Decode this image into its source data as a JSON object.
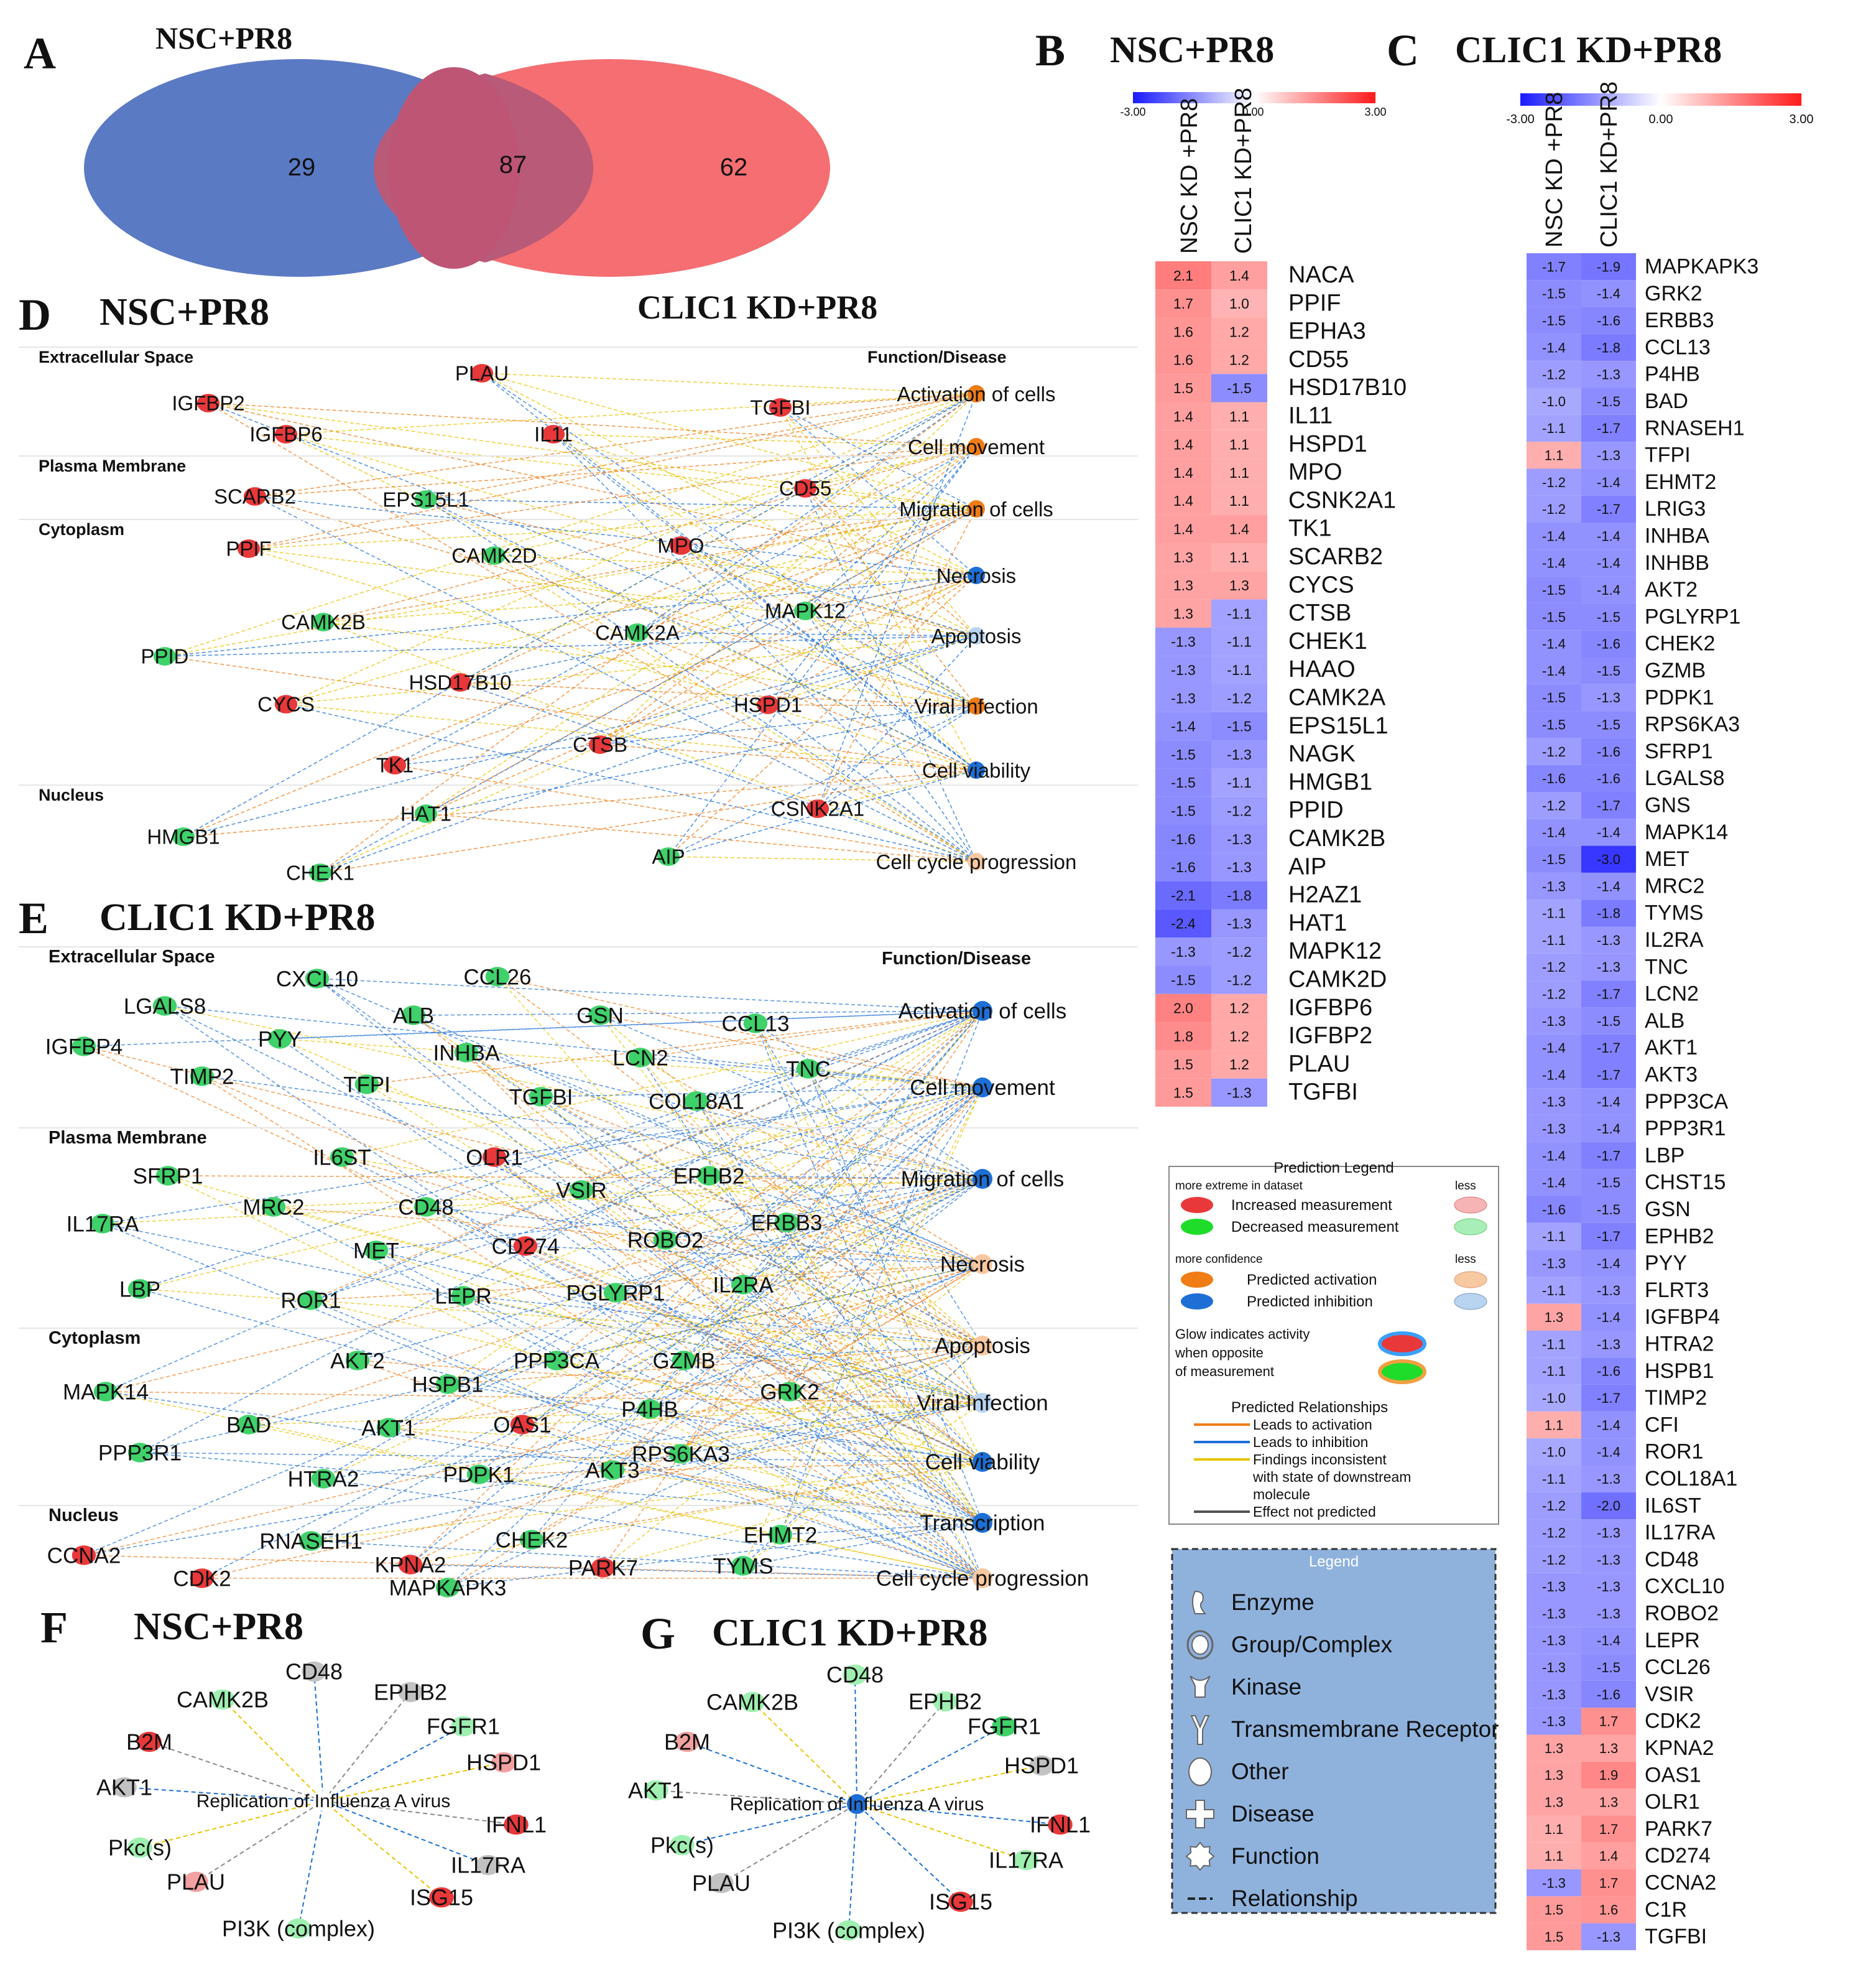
{
  "colors": {
    "red": "#e8383a",
    "pink": "#f2a0a0",
    "green": "#3fd16a",
    "lightgreen": "#9ff0b0",
    "orange": "#f07c16",
    "peach": "#f8c8a0",
    "blue": "#1d6fd6",
    "lightblue": "#b8d4f0",
    "venn_left": "#5b7ac4",
    "venn_right": "#f46e72",
    "legend_bg": "#8fb2dd"
  },
  "panelA": {
    "label": "A",
    "title": "NSC+PR8",
    "left_only": "29",
    "overlap": "87",
    "right_only": "62"
  },
  "panelB": {
    "label": "B",
    "title": "NSC+PR8",
    "scale": {
      "min": "-3.00",
      "mid": "0.00",
      "max": "3.00"
    },
    "columns": [
      "NSC KD +PR8",
      "CLIC1 KD+PR8"
    ],
    "rows": [
      {
        "gene": "NACA",
        "a": 2.1,
        "b": 1.4
      },
      {
        "gene": "PPIF",
        "a": 1.7,
        "b": 1.0
      },
      {
        "gene": "EPHA3",
        "a": 1.6,
        "b": 1.2
      },
      {
        "gene": "CD55",
        "a": 1.6,
        "b": 1.2
      },
      {
        "gene": "HSD17B10",
        "a": 1.5,
        "b": -1.5
      },
      {
        "gene": "IL11",
        "a": 1.4,
        "b": 1.1
      },
      {
        "gene": "HSPD1",
        "a": 1.4,
        "b": 1.1
      },
      {
        "gene": "MPO",
        "a": 1.4,
        "b": 1.1
      },
      {
        "gene": "CSNK2A1",
        "a": 1.4,
        "b": 1.1
      },
      {
        "gene": "TK1",
        "a": 1.4,
        "b": 1.4
      },
      {
        "gene": "SCARB2",
        "a": 1.3,
        "b": 1.1
      },
      {
        "gene": "CYCS",
        "a": 1.3,
        "b": 1.3
      },
      {
        "gene": "CTSB",
        "a": 1.3,
        "b": -1.1
      },
      {
        "gene": "CHEK1",
        "a": -1.3,
        "b": -1.1
      },
      {
        "gene": "HAAO",
        "a": -1.3,
        "b": -1.1
      },
      {
        "gene": "CAMK2A",
        "a": -1.3,
        "b": -1.2
      },
      {
        "gene": "EPS15L1",
        "a": -1.4,
        "b": -1.5
      },
      {
        "gene": "NAGK",
        "a": -1.5,
        "b": -1.3
      },
      {
        "gene": "HMGB1",
        "a": -1.5,
        "b": -1.1
      },
      {
        "gene": "PPID",
        "a": -1.5,
        "b": -1.2
      },
      {
        "gene": "CAMK2B",
        "a": -1.6,
        "b": -1.3
      },
      {
        "gene": "AIP",
        "a": -1.6,
        "b": -1.3
      },
      {
        "gene": "H2AZ1",
        "a": -2.1,
        "b": -1.8
      },
      {
        "gene": "HAT1",
        "a": -2.4,
        "b": -1.3
      },
      {
        "gene": "MAPK12",
        "a": -1.3,
        "b": -1.2
      },
      {
        "gene": "CAMK2D",
        "a": -1.5,
        "b": -1.2
      },
      {
        "gene": "IGFBP6",
        "a": 2.0,
        "b": 1.2
      },
      {
        "gene": "IGFBP2",
        "a": 1.8,
        "b": 1.2
      },
      {
        "gene": "PLAU",
        "a": 1.5,
        "b": 1.2
      },
      {
        "gene": "TGFBI",
        "a": 1.5,
        "b": -1.3
      }
    ]
  },
  "panelC": {
    "label": "C",
    "title": "CLIC1 KD+PR8",
    "scale": {
      "min": "-3.00",
      "mid": "0.00",
      "max": "3.00"
    },
    "columns": [
      "NSC KD +PR8",
      "CLIC1 KD+PR8"
    ],
    "rows": [
      {
        "gene": "MAPKAPK3",
        "a": -1.7,
        "b": -1.9
      },
      {
        "gene": "GRK2",
        "a": -1.5,
        "b": -1.4
      },
      {
        "gene": "ERBB3",
        "a": -1.5,
        "b": -1.6
      },
      {
        "gene": "CCL13",
        "a": -1.4,
        "b": -1.8
      },
      {
        "gene": "P4HB",
        "a": -1.2,
        "b": -1.3
      },
      {
        "gene": "BAD",
        "a": -1.0,
        "b": -1.5
      },
      {
        "gene": "RNASEH1",
        "a": -1.1,
        "b": -1.7
      },
      {
        "gene": "TFPI",
        "a": 1.1,
        "b": -1.3
      },
      {
        "gene": "EHMT2",
        "a": -1.2,
        "b": -1.4
      },
      {
        "gene": "LRIG3",
        "a": -1.2,
        "b": -1.7
      },
      {
        "gene": "INHBA",
        "a": -1.4,
        "b": -1.4
      },
      {
        "gene": "INHBB",
        "a": -1.4,
        "b": -1.4
      },
      {
        "gene": "AKT2",
        "a": -1.5,
        "b": -1.4
      },
      {
        "gene": "PGLYRP1",
        "a": -1.5,
        "b": -1.5
      },
      {
        "gene": "CHEK2",
        "a": -1.4,
        "b": -1.6
      },
      {
        "gene": "GZMB",
        "a": -1.4,
        "b": -1.5
      },
      {
        "gene": "PDPK1",
        "a": -1.5,
        "b": -1.3
      },
      {
        "gene": "RPS6KA3",
        "a": -1.5,
        "b": -1.5
      },
      {
        "gene": "SFRP1",
        "a": -1.2,
        "b": -1.6
      },
      {
        "gene": "LGALS8",
        "a": -1.6,
        "b": -1.6
      },
      {
        "gene": "GNS",
        "a": -1.2,
        "b": -1.7
      },
      {
        "gene": "MAPK14",
        "a": -1.4,
        "b": -1.4
      },
      {
        "gene": "MET",
        "a": -1.5,
        "b": -3.0
      },
      {
        "gene": "MRC2",
        "a": -1.3,
        "b": -1.4
      },
      {
        "gene": "TYMS",
        "a": -1.1,
        "b": -1.8
      },
      {
        "gene": "IL2RA",
        "a": -1.1,
        "b": -1.3
      },
      {
        "gene": "TNC",
        "a": -1.2,
        "b": -1.3
      },
      {
        "gene": "LCN2",
        "a": -1.2,
        "b": -1.7
      },
      {
        "gene": "ALB",
        "a": -1.3,
        "b": -1.5
      },
      {
        "gene": "AKT1",
        "a": -1.4,
        "b": -1.7
      },
      {
        "gene": "AKT3",
        "a": -1.4,
        "b": -1.7
      },
      {
        "gene": "PPP3CA",
        "a": -1.3,
        "b": -1.4
      },
      {
        "gene": "PPP3R1",
        "a": -1.3,
        "b": -1.4
      },
      {
        "gene": "LBP",
        "a": -1.4,
        "b": -1.7
      },
      {
        "gene": "CHST15",
        "a": -1.4,
        "b": -1.5
      },
      {
        "gene": "GSN",
        "a": -1.6,
        "b": -1.5
      },
      {
        "gene": "EPHB2",
        "a": -1.1,
        "b": -1.7
      },
      {
        "gene": "PYY",
        "a": -1.3,
        "b": -1.4
      },
      {
        "gene": "FLRT3",
        "a": -1.1,
        "b": -1.3
      },
      {
        "gene": "IGFBP4",
        "a": 1.3,
        "b": -1.4
      },
      {
        "gene": "HTRA2",
        "a": -1.1,
        "b": -1.3
      },
      {
        "gene": "HSPB1",
        "a": -1.1,
        "b": -1.6
      },
      {
        "gene": "TIMP2",
        "a": -1.0,
        "b": -1.7
      },
      {
        "gene": "CFI",
        "a": 1.1,
        "b": -1.4
      },
      {
        "gene": "ROR1",
        "a": -1.0,
        "b": -1.4
      },
      {
        "gene": "COL18A1",
        "a": -1.1,
        "b": -1.3
      },
      {
        "gene": "IL6ST",
        "a": -1.2,
        "b": -2.0
      },
      {
        "gene": "IL17RA",
        "a": -1.2,
        "b": -1.3
      },
      {
        "gene": "CD48",
        "a": -1.2,
        "b": -1.3
      },
      {
        "gene": "CXCL10",
        "a": -1.3,
        "b": -1.3
      },
      {
        "gene": "ROBO2",
        "a": -1.3,
        "b": -1.3
      },
      {
        "gene": "LEPR",
        "a": -1.3,
        "b": -1.4
      },
      {
        "gene": "CCL26",
        "a": -1.3,
        "b": -1.5
      },
      {
        "gene": "VSIR",
        "a": -1.3,
        "b": -1.6
      },
      {
        "gene": "CDK2",
        "a": -1.3,
        "b": 1.7
      },
      {
        "gene": "KPNA2",
        "a": 1.3,
        "b": 1.3
      },
      {
        "gene": "OAS1",
        "a": 1.3,
        "b": 1.9
      },
      {
        "gene": "OLR1",
        "a": 1.3,
        "b": 1.3
      },
      {
        "gene": "PARK7",
        "a": 1.1,
        "b": 1.7
      },
      {
        "gene": "CD274",
        "a": 1.1,
        "b": 1.4
      },
      {
        "gene": "CCNA2",
        "a": -1.3,
        "b": 1.7
      },
      {
        "gene": "C1R",
        "a": 1.5,
        "b": 1.6
      },
      {
        "gene": "TGFBI",
        "a": 1.5,
        "b": -1.3
      }
    ]
  },
  "panelD": {
    "label": "D",
    "title": "NSC+PR8",
    "title2": "CLIC1 KD+PR8",
    "sections": [
      "Extracellular Space",
      "Plasma Membrane",
      "Cytoplasm",
      "Nucleus"
    ],
    "fn_header": "Function/Disease",
    "functions": [
      "Activation of cells",
      "Cell movement",
      "Migration of cells",
      "Necrosis",
      "Apoptosis",
      "Viral Infection",
      "Cell viability",
      "Cell cycle progression"
    ],
    "nodes": [
      {
        "n": "PLAU",
        "c": "red"
      },
      {
        "n": "IGFBP2",
        "c": "red"
      },
      {
        "n": "IGFBP6",
        "c": "red"
      },
      {
        "n": "IL11",
        "c": "red"
      },
      {
        "n": "TGFBI",
        "c": "red"
      },
      {
        "n": "SCARB2",
        "c": "red"
      },
      {
        "n": "EPS15L1",
        "c": "green"
      },
      {
        "n": "CD55",
        "c": "red"
      },
      {
        "n": "PPIF",
        "c": "red"
      },
      {
        "n": "CAMK2D",
        "c": "green"
      },
      {
        "n": "MPO",
        "c": "red"
      },
      {
        "n": "CAMK2B",
        "c": "green"
      },
      {
        "n": "CAMK2A",
        "c": "green"
      },
      {
        "n": "MAPK12",
        "c": "green"
      },
      {
        "n": "PPID",
        "c": "green"
      },
      {
        "n": "HSD17B10",
        "c": "red"
      },
      {
        "n": "CYCS",
        "c": "red"
      },
      {
        "n": "HSPD1",
        "c": "red"
      },
      {
        "n": "CTSB",
        "c": "red"
      },
      {
        "n": "TK1",
        "c": "red"
      },
      {
        "n": "CSNK2A1",
        "c": "red"
      },
      {
        "n": "HAT1",
        "c": "green"
      },
      {
        "n": "HMGB1",
        "c": "green"
      },
      {
        "n": "AIP",
        "c": "green"
      },
      {
        "n": "CHEK1",
        "c": "green"
      }
    ]
  },
  "panelE": {
    "label": "E",
    "title": "CLIC1 KD+PR8",
    "sections": [
      "Extracellular Space",
      "Plasma Membrane",
      "Cytoplasm",
      "Nucleus"
    ],
    "fn_header": "Function/Disease",
    "functions": [
      "Activation of cells",
      "Cell movement",
      "Migration of cells",
      "Necrosis",
      "Apoptosis",
      "Viral Infection",
      "Cell viability",
      "Transcription",
      "Cell cycle progression"
    ],
    "nodes": [
      {
        "n": "CXCL10",
        "c": "green"
      },
      {
        "n": "CCL26",
        "c": "green"
      },
      {
        "n": "LGALS8",
        "c": "green"
      },
      {
        "n": "ALB",
        "c": "green"
      },
      {
        "n": "GSN",
        "c": "green"
      },
      {
        "n": "CCL13",
        "c": "green"
      },
      {
        "n": "IGFBP4",
        "c": "green"
      },
      {
        "n": "PYY",
        "c": "green"
      },
      {
        "n": "INHBA",
        "c": "green"
      },
      {
        "n": "LCN2",
        "c": "green"
      },
      {
        "n": "TNC",
        "c": "green"
      },
      {
        "n": "TIMP2",
        "c": "green"
      },
      {
        "n": "TFPI",
        "c": "green"
      },
      {
        "n": "TGFBI",
        "c": "green"
      },
      {
        "n": "COL18A1",
        "c": "green"
      },
      {
        "n": "IL6ST",
        "c": "green"
      },
      {
        "n": "OLR1",
        "c": "red"
      },
      {
        "n": "SFRP1",
        "c": "green"
      },
      {
        "n": "EPHB2",
        "c": "green"
      },
      {
        "n": "VSIR",
        "c": "green"
      },
      {
        "n": "MRC2",
        "c": "green"
      },
      {
        "n": "CD48",
        "c": "green"
      },
      {
        "n": "ERBB3",
        "c": "green"
      },
      {
        "n": "IL17RA",
        "c": "green"
      },
      {
        "n": "CD274",
        "c": "red"
      },
      {
        "n": "ROBO2",
        "c": "green"
      },
      {
        "n": "MET",
        "c": "green"
      },
      {
        "n": "IL2RA",
        "c": "green"
      },
      {
        "n": "LBP",
        "c": "green"
      },
      {
        "n": "PGLYRP1",
        "c": "green"
      },
      {
        "n": "ROR1",
        "c": "green"
      },
      {
        "n": "LEPR",
        "c": "green"
      },
      {
        "n": "AKT2",
        "c": "green"
      },
      {
        "n": "PPP3CA",
        "c": "green"
      },
      {
        "n": "GZMB",
        "c": "green"
      },
      {
        "n": "MAPK14",
        "c": "green"
      },
      {
        "n": "HSPB1",
        "c": "green"
      },
      {
        "n": "GRK2",
        "c": "green"
      },
      {
        "n": "BAD",
        "c": "green"
      },
      {
        "n": "P4HB",
        "c": "green"
      },
      {
        "n": "AKT1",
        "c": "green"
      },
      {
        "n": "OAS1",
        "c": "red"
      },
      {
        "n": "PPP3R1",
        "c": "green"
      },
      {
        "n": "RPS6KA3",
        "c": "green"
      },
      {
        "n": "HTRA2",
        "c": "green"
      },
      {
        "n": "PDPK1",
        "c": "green"
      },
      {
        "n": "AKT3",
        "c": "green"
      },
      {
        "n": "RNASEH1",
        "c": "green"
      },
      {
        "n": "CHEK2",
        "c": "green"
      },
      {
        "n": "EHMT2",
        "c": "green"
      },
      {
        "n": "CCNA2",
        "c": "red"
      },
      {
        "n": "KPNA2",
        "c": "red"
      },
      {
        "n": "TYMS",
        "c": "green"
      },
      {
        "n": "CDK2",
        "c": "red"
      },
      {
        "n": "PARK7",
        "c": "red"
      },
      {
        "n": "MAPKAPK3",
        "c": "green"
      }
    ]
  },
  "panelF": {
    "label": "F",
    "title": "NSC+PR8",
    "center": "Replication of Influenza A virus",
    "nodes": [
      {
        "n": "CD48",
        "c": "gray"
      },
      {
        "n": "EPHB2",
        "c": "gray"
      },
      {
        "n": "CAMK2B",
        "c": "lightgreen"
      },
      {
        "n": "FGFR1",
        "c": "lightgreen"
      },
      {
        "n": "B2M",
        "c": "red"
      },
      {
        "n": "HSPD1",
        "c": "pink"
      },
      {
        "n": "AKT1",
        "c": "gray"
      },
      {
        "n": "IFNL1",
        "c": "red"
      },
      {
        "n": "Pkc(s)",
        "c": "lightgreen"
      },
      {
        "n": "IL17RA",
        "c": "gray"
      },
      {
        "n": "PLAU",
        "c": "pink"
      },
      {
        "n": "ISG15",
        "c": "red"
      },
      {
        "n": "PI3K (complex)",
        "c": "lightgreen"
      }
    ]
  },
  "panelG": {
    "label": "G",
    "title": "CLIC1 KD+PR8",
    "center": "Replication of Influenza A virus",
    "nodes": [
      {
        "n": "CD48",
        "c": "lightgreen"
      },
      {
        "n": "CAMK2B",
        "c": "lightgreen"
      },
      {
        "n": "EPHB2",
        "c": "lightgreen"
      },
      {
        "n": "FGFR1",
        "c": "green"
      },
      {
        "n": "B2M",
        "c": "pink"
      },
      {
        "n": "HSPD1",
        "c": "gray"
      },
      {
        "n": "AKT1",
        "c": "lightgreen"
      },
      {
        "n": "IFNL1",
        "c": "red"
      },
      {
        "n": "Pkc(s)",
        "c": "lightgreen"
      },
      {
        "n": "IL17RA",
        "c": "lightgreen"
      },
      {
        "n": "PLAU",
        "c": "gray"
      },
      {
        "n": "ISG15",
        "c": "red"
      },
      {
        "n": "PI3K (complex)",
        "c": "lightgreen"
      }
    ]
  },
  "prediction_legend": {
    "title": "Prediction Legend",
    "more_extreme": "more extreme in dataset",
    "less": "less",
    "increased": "Increased measurement",
    "decreased": "Decreased measurement",
    "more_confidence": "more confidence",
    "less2": "less",
    "activation": "Predicted activation",
    "inhibition": "Predicted inhibition",
    "glow1": "Glow indicates activity",
    "glow2": "when opposite",
    "glow3": "of measurement",
    "rel_title": "Predicted Relationships",
    "rel_activation": "Leads to activation",
    "rel_inhibition": "Leads to inhibition",
    "rel_inconsistent1": "Findings inconsistent",
    "rel_inconsistent2": "with state of downstream",
    "rel_inconsistent3": "molecule",
    "rel_not_predicted": "Effect not predicted"
  },
  "shape_legend": {
    "title": "Legend",
    "items": [
      "Enzyme",
      "Group/Complex",
      "Kinase",
      "Transmembrane Receptor",
      "Other",
      "Disease",
      "Function",
      "Relationship"
    ]
  }
}
